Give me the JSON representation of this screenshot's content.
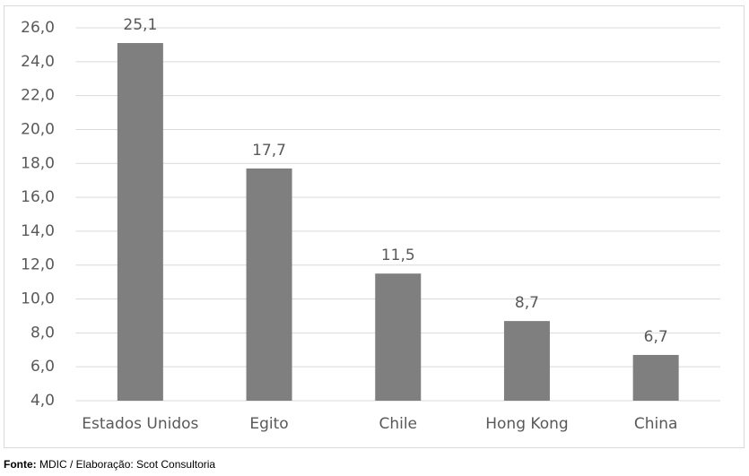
{
  "chart_data": {
    "type": "bar",
    "categories": [
      "Estados Unidos",
      "Egito",
      "Chile",
      "Hong Kong",
      "China"
    ],
    "values": [
      25.1,
      17.7,
      11.5,
      8.7,
      6.7
    ],
    "value_labels": [
      "25,1",
      "17,7",
      "11,5",
      "8,7",
      "6,7"
    ],
    "color": "#7f7f7f",
    "ylim": [
      4,
      26
    ],
    "yticks": [
      {
        "value": 4,
        "label": "4,0"
      },
      {
        "value": 6,
        "label": "6,0"
      },
      {
        "value": 8,
        "label": "8,0"
      },
      {
        "value": 10,
        "label": "10,0"
      },
      {
        "value": 12,
        "label": "12,0"
      },
      {
        "value": 14,
        "label": "14,0"
      },
      {
        "value": 16,
        "label": "16,0"
      },
      {
        "value": 18,
        "label": "18,0"
      },
      {
        "value": 20,
        "label": "20,0"
      },
      {
        "value": 22,
        "label": "22,0"
      },
      {
        "value": 24,
        "label": "24,0"
      },
      {
        "value": 26,
        "label": "26,0"
      }
    ],
    "grid": true,
    "source_label": "Fonte:",
    "source": "MDIC / Elaboração: Scot Consultoria"
  }
}
